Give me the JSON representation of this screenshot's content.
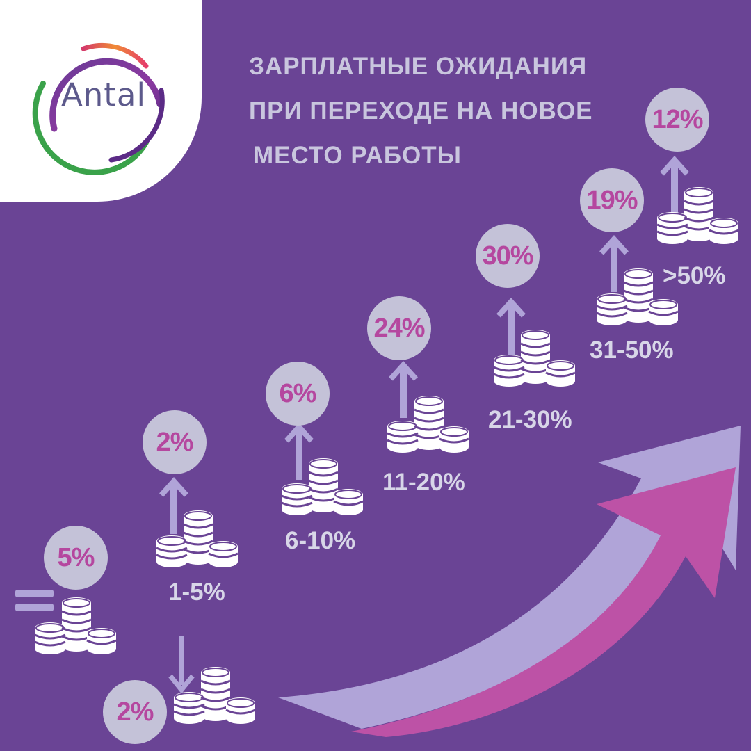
{
  "logo": {
    "text": "Antal"
  },
  "title": {
    "line1": "ЗАРПЛАТНЫЕ ОЖИДАНИЯ",
    "line2": "ПРИ ПЕРЕХОДЕ НА НОВОЕ",
    "line3": "МЕСТО РАБОТЫ"
  },
  "steps": [
    {
      "id": "decrease",
      "percent": "2%",
      "direction": "down",
      "range": ""
    },
    {
      "id": "same",
      "percent": "5%",
      "direction": "equal",
      "range": ""
    },
    {
      "id": "r1",
      "percent": "2%",
      "direction": "up",
      "range": "1-5%"
    },
    {
      "id": "r2",
      "percent": "6%",
      "direction": "up",
      "range": "6-10%"
    },
    {
      "id": "r3",
      "percent": "24%",
      "direction": "up",
      "range": "11-20%"
    },
    {
      "id": "r4",
      "percent": "30%",
      "direction": "up",
      "range": "21-30%"
    },
    {
      "id": "r5",
      "percent": "19%",
      "direction": "up",
      "range": "31-50%"
    },
    {
      "id": "r6",
      "percent": "12%",
      "direction": "up",
      "range": ">50%"
    }
  ],
  "colors": {
    "background": "#6a4495",
    "bubble": "#c4c2d8",
    "percent_text": "#b5479f",
    "arrow_light": "#b0a4d8",
    "arrow_pink": "#bd52a6",
    "coins": "#ffffff"
  }
}
